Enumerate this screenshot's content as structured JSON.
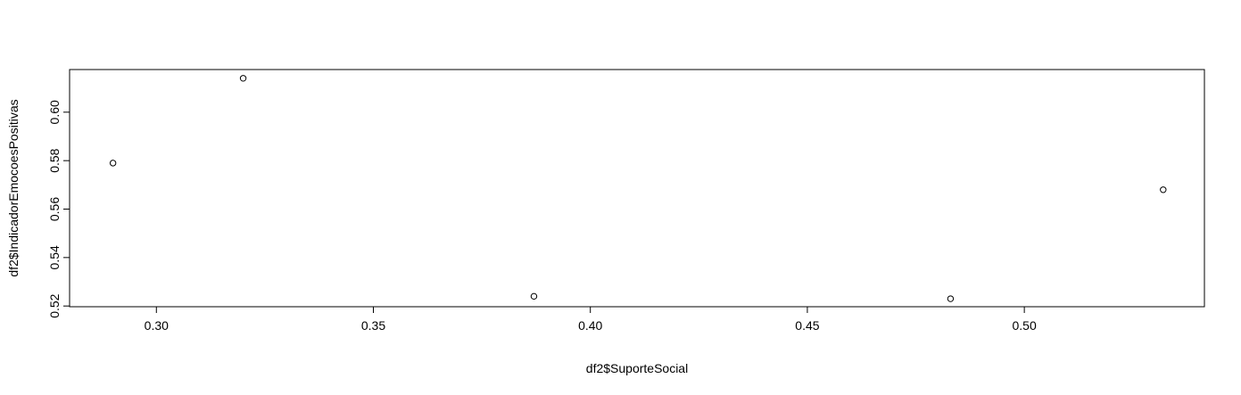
{
  "chart_data": {
    "type": "scatter",
    "xlabel": "df2$SuporteSocial",
    "ylabel": "df2$IndicadorEmocoesPositivas",
    "xlim": [
      0.28,
      0.5415
    ],
    "ylim": [
      0.5197,
      0.6176
    ],
    "x_ticks": [
      0.3,
      0.35,
      0.4,
      0.45,
      0.5
    ],
    "x_tick_labels": [
      "0.30",
      "0.35",
      "0.40",
      "0.45",
      "0.50"
    ],
    "y_ticks": [
      0.52,
      0.54,
      0.56,
      0.58,
      0.6
    ],
    "y_tick_labels": [
      "0.52",
      "0.54",
      "0.56",
      "0.58",
      "0.60"
    ],
    "points": [
      {
        "x": 0.29,
        "y": 0.579
      },
      {
        "x": 0.32,
        "y": 0.614
      },
      {
        "x": 0.387,
        "y": 0.524
      },
      {
        "x": 0.483,
        "y": 0.523
      },
      {
        "x": 0.532,
        "y": 0.568
      }
    ],
    "grid": false,
    "marker": "open-circle",
    "colors": {
      "points": "#000000",
      "axes": "#000000",
      "background": "#ffffff"
    }
  }
}
